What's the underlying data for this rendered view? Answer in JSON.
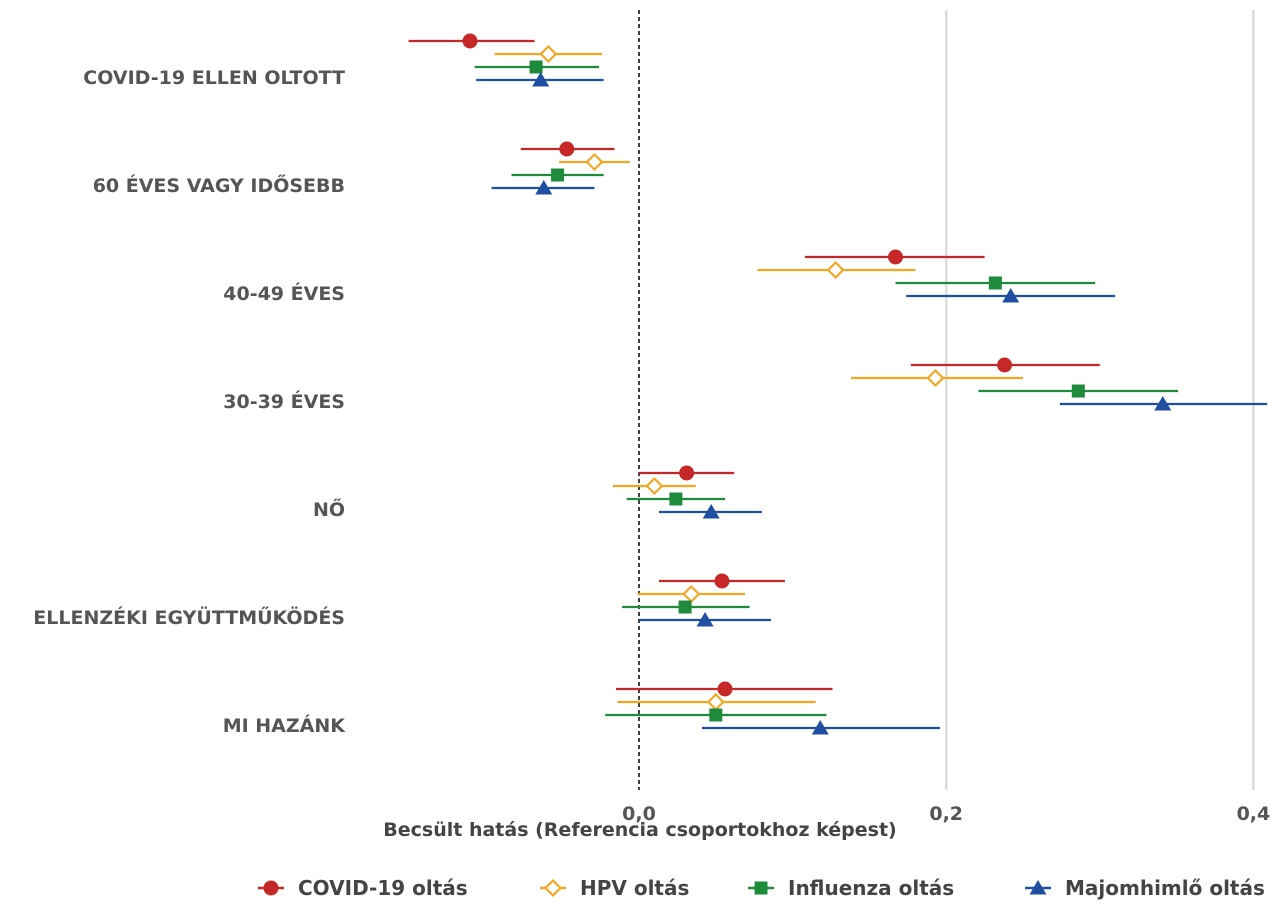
{
  "chart_data": {
    "type": "forest",
    "categories": [
      "COVID-19 ELLEN OLTOTT",
      "60 ÉVES VAGY IDŐSEBB",
      "40-49 ÉVES",
      "30-39 ÉVES",
      "NŐ",
      "ELLENZÉKI EGYÜTTMŰKÖDÉS",
      "MI HAZÁNK"
    ],
    "xlabel": "Becsült hatás  (Referencia csoportokhoz képest)",
    "xlim": [
      -0.15,
      0.41
    ],
    "xticks": [
      0.0,
      0.2,
      0.4
    ],
    "xtick_labels": [
      "0,0",
      "0,2",
      "0,4"
    ],
    "reference_line": 0,
    "grid": "vertical major lines at 0,2 and 0,4",
    "legend_position": "bottom",
    "series": [
      {
        "name": "COVID-19 oltás",
        "color": "#c62828",
        "marker": "circle",
        "estimates": [
          -0.11,
          -0.047,
          0.167,
          0.238,
          0.031,
          0.054,
          0.056
        ],
        "ci_low": [
          -0.15,
          -0.077,
          0.108,
          0.177,
          0.0,
          0.013,
          -0.015
        ],
        "ci_high": [
          -0.068,
          -0.016,
          0.225,
          0.3,
          0.062,
          0.095,
          0.126
        ]
      },
      {
        "name": "HPV oltás",
        "color": "#f5a623",
        "marker": "diamond-open",
        "estimates": [
          -0.059,
          -0.029,
          0.128,
          0.193,
          0.01,
          0.034,
          0.05
        ],
        "ci_low": [
          -0.094,
          -0.052,
          0.077,
          0.138,
          -0.017,
          -0.001,
          -0.014
        ],
        "ci_high": [
          -0.024,
          -0.006,
          0.18,
          0.25,
          0.037,
          0.069,
          0.115
        ]
      },
      {
        "name": "Influenza oltás",
        "color": "#1e8a3c",
        "marker": "square",
        "estimates": [
          -0.067,
          -0.053,
          0.232,
          0.286,
          0.024,
          0.03,
          0.05
        ],
        "ci_low": [
          -0.107,
          -0.083,
          0.167,
          0.221,
          -0.008,
          -0.011,
          -0.022
        ],
        "ci_high": [
          -0.026,
          -0.023,
          0.297,
          0.351,
          0.056,
          0.072,
          0.122
        ]
      },
      {
        "name": "Majomhimlő oltás",
        "color": "#1f4fa0",
        "marker": "triangle",
        "estimates": [
          -0.064,
          -0.062,
          0.242,
          0.341,
          0.047,
          0.043,
          0.118
        ],
        "ci_low": [
          -0.106,
          -0.096,
          0.174,
          0.274,
          0.013,
          0.0,
          0.041
        ],
        "ci_high": [
          -0.023,
          -0.029,
          0.31,
          0.409,
          0.08,
          0.086,
          0.196
        ]
      }
    ]
  }
}
